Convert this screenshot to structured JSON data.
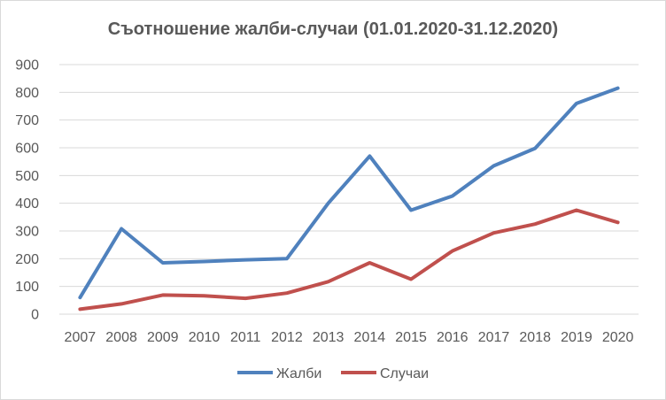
{
  "chart_data": {
    "type": "line",
    "title": "Съотношение жалби-случаи (01.01.2020-31.12.2020)",
    "xlabel": "",
    "ylabel": "",
    "categories": [
      "2007",
      "2008",
      "2009",
      "2010",
      "2011",
      "2012",
      "2013",
      "2014",
      "2015",
      "2016",
      "2017",
      "2018",
      "2019",
      "2020"
    ],
    "ylim": [
      0,
      900
    ],
    "yticks": [
      "0",
      "100",
      "200",
      "300",
      "400",
      "500",
      "600",
      "700",
      "800",
      "900"
    ],
    "grid": true,
    "legend_position": "bottom",
    "series": [
      {
        "name": "Жалби",
        "color": "#4f81bd",
        "values": [
          60,
          308,
          185,
          190,
          196,
          200,
          400,
          570,
          375,
          426,
          535,
          598,
          760,
          815
        ]
      },
      {
        "name": "Случаи",
        "color": "#c0504d",
        "values": [
          18,
          37,
          69,
          66,
          57,
          76,
          117,
          185,
          126,
          228,
          293,
          325,
          375,
          331
        ]
      }
    ]
  }
}
